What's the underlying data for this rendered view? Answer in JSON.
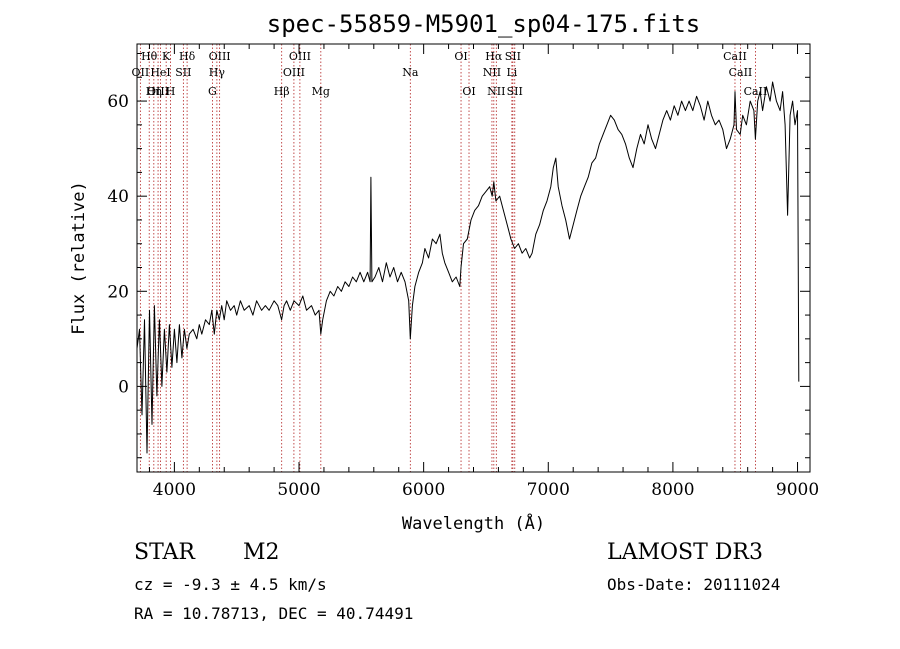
{
  "chart_data": {
    "type": "line",
    "title": "spec-55859-M5901_sp04-175.fits",
    "xlabel": "Wavelength (Å)",
    "ylabel": "Flux (relative)",
    "xlim": [
      3700,
      9100
    ],
    "ylim": [
      -18,
      72
    ],
    "x_ticks": [
      4000,
      5000,
      6000,
      7000,
      8000,
      9000
    ],
    "y_ticks": [
      0,
      20,
      40,
      60
    ],
    "grid": false,
    "line_color": "#000000",
    "marker_color": "#b22222",
    "spectral_lines": [
      {
        "label": "Hθ",
        "x": 3798,
        "row": 0
      },
      {
        "label": "OII",
        "x": 3727,
        "row": 1
      },
      {
        "label": "OIII",
        "x": 3869,
        "row": 2
      },
      {
        "label": "HeI",
        "x": 3889,
        "row": 1
      },
      {
        "label": "Hη",
        "x": 3835,
        "row": 2
      },
      {
        "label": "K",
        "x": 3934,
        "row": 0
      },
      {
        "label": "H",
        "x": 3969,
        "row": 2
      },
      {
        "label": "SII",
        "x": 4072,
        "row": 1
      },
      {
        "label": "Hδ",
        "x": 4102,
        "row": 0
      },
      {
        "label": "OIII",
        "x": 4363,
        "row": 0
      },
      {
        "label": "Hγ",
        "x": 4341,
        "row": 1
      },
      {
        "label": "G",
        "x": 4305,
        "row": 2
      },
      {
        "label": "OIII",
        "x": 5007,
        "row": 0
      },
      {
        "label": "OIII",
        "x": 4959,
        "row": 1
      },
      {
        "label": "Hβ",
        "x": 4861,
        "row": 2
      },
      {
        "label": "Mg",
        "x": 5175,
        "row": 2
      },
      {
        "label": "Na",
        "x": 5893,
        "row": 1
      },
      {
        "label": "OI",
        "x": 6300,
        "row": 0
      },
      {
        "label": "OI",
        "x": 6364,
        "row": 2
      },
      {
        "label": "Hα",
        "x": 6563,
        "row": 0
      },
      {
        "label": "SII",
        "x": 6716,
        "row": 0
      },
      {
        "label": "NII",
        "x": 6548,
        "row": 1
      },
      {
        "label": "Li",
        "x": 6708,
        "row": 1
      },
      {
        "label": "NII",
        "x": 6583,
        "row": 2
      },
      {
        "label": "SII",
        "x": 6731,
        "row": 2
      },
      {
        "label": "CaII",
        "x": 8498,
        "row": 0
      },
      {
        "label": "CaII",
        "x": 8542,
        "row": 1
      },
      {
        "label": "CaII",
        "x": 8662,
        "row": 2
      }
    ],
    "series": [
      {
        "name": "flux",
        "points": [
          [
            3700,
            8
          ],
          [
            3720,
            12
          ],
          [
            3740,
            -6
          ],
          [
            3760,
            14
          ],
          [
            3780,
            -14
          ],
          [
            3800,
            16
          ],
          [
            3820,
            -8
          ],
          [
            3840,
            17
          ],
          [
            3860,
            -2
          ],
          [
            3880,
            14
          ],
          [
            3900,
            0
          ],
          [
            3920,
            12
          ],
          [
            3940,
            3
          ],
          [
            3960,
            13
          ],
          [
            3980,
            4
          ],
          [
            4000,
            12
          ],
          [
            4020,
            5
          ],
          [
            4040,
            13
          ],
          [
            4060,
            6
          ],
          [
            4080,
            12
          ],
          [
            4100,
            8
          ],
          [
            4120,
            11
          ],
          [
            4150,
            12
          ],
          [
            4180,
            10
          ],
          [
            4200,
            13
          ],
          [
            4220,
            11
          ],
          [
            4250,
            14
          ],
          [
            4280,
            13
          ],
          [
            4300,
            16
          ],
          [
            4320,
            11
          ],
          [
            4340,
            16
          ],
          [
            4360,
            14
          ],
          [
            4380,
            17
          ],
          [
            4400,
            14
          ],
          [
            4420,
            18
          ],
          [
            4450,
            16
          ],
          [
            4480,
            17
          ],
          [
            4500,
            15
          ],
          [
            4530,
            18
          ],
          [
            4560,
            16
          ],
          [
            4600,
            17
          ],
          [
            4630,
            15
          ],
          [
            4660,
            18
          ],
          [
            4700,
            16
          ],
          [
            4730,
            17
          ],
          [
            4760,
            16
          ],
          [
            4800,
            18
          ],
          [
            4830,
            17
          ],
          [
            4860,
            14
          ],
          [
            4880,
            17
          ],
          [
            4900,
            18
          ],
          [
            4930,
            16
          ],
          [
            4960,
            18
          ],
          [
            5000,
            17
          ],
          [
            5030,
            19
          ],
          [
            5060,
            16
          ],
          [
            5100,
            17
          ],
          [
            5130,
            15
          ],
          [
            5160,
            16
          ],
          [
            5175,
            11
          ],
          [
            5190,
            14
          ],
          [
            5220,
            18
          ],
          [
            5250,
            20
          ],
          [
            5280,
            19
          ],
          [
            5310,
            21
          ],
          [
            5340,
            20
          ],
          [
            5370,
            22
          ],
          [
            5400,
            21
          ],
          [
            5430,
            23
          ],
          [
            5460,
            22
          ],
          [
            5490,
            24
          ],
          [
            5520,
            22
          ],
          [
            5550,
            24
          ],
          [
            5570,
            22
          ],
          [
            5577,
            44
          ],
          [
            5585,
            22
          ],
          [
            5610,
            23
          ],
          [
            5640,
            25
          ],
          [
            5670,
            22
          ],
          [
            5700,
            26
          ],
          [
            5730,
            23
          ],
          [
            5760,
            25
          ],
          [
            5790,
            22
          ],
          [
            5820,
            24
          ],
          [
            5850,
            22
          ],
          [
            5880,
            18
          ],
          [
            5893,
            10
          ],
          [
            5910,
            17
          ],
          [
            5930,
            21
          ],
          [
            5960,
            24
          ],
          [
            5990,
            26
          ],
          [
            6010,
            29
          ],
          [
            6040,
            27
          ],
          [
            6070,
            31
          ],
          [
            6100,
            30
          ],
          [
            6130,
            32
          ],
          [
            6150,
            28
          ],
          [
            6170,
            26
          ],
          [
            6200,
            24
          ],
          [
            6230,
            22
          ],
          [
            6260,
            23
          ],
          [
            6290,
            21
          ],
          [
            6300,
            25
          ],
          [
            6320,
            30
          ],
          [
            6350,
            31
          ],
          [
            6380,
            35
          ],
          [
            6410,
            37
          ],
          [
            6440,
            38
          ],
          [
            6470,
            40
          ],
          [
            6500,
            41
          ],
          [
            6530,
            42
          ],
          [
            6550,
            40
          ],
          [
            6563,
            43
          ],
          [
            6580,
            39
          ],
          [
            6610,
            40
          ],
          [
            6640,
            37
          ],
          [
            6670,
            34
          ],
          [
            6700,
            31
          ],
          [
            6730,
            29
          ],
          [
            6760,
            30
          ],
          [
            6790,
            28
          ],
          [
            6820,
            29
          ],
          [
            6850,
            27
          ],
          [
            6870,
            28
          ],
          [
            6900,
            32
          ],
          [
            6930,
            34
          ],
          [
            6960,
            37
          ],
          [
            6990,
            39
          ],
          [
            7020,
            42
          ],
          [
            7040,
            46
          ],
          [
            7060,
            48
          ],
          [
            7080,
            42
          ],
          [
            7110,
            38
          ],
          [
            7140,
            35
          ],
          [
            7170,
            31
          ],
          [
            7200,
            34
          ],
          [
            7230,
            37
          ],
          [
            7260,
            40
          ],
          [
            7290,
            42
          ],
          [
            7320,
            44
          ],
          [
            7350,
            47
          ],
          [
            7380,
            48
          ],
          [
            7410,
            51
          ],
          [
            7440,
            53
          ],
          [
            7470,
            55
          ],
          [
            7500,
            57
          ],
          [
            7530,
            56
          ],
          [
            7560,
            54
          ],
          [
            7590,
            53
          ],
          [
            7620,
            51
          ],
          [
            7650,
            48
          ],
          [
            7680,
            46
          ],
          [
            7710,
            50
          ],
          [
            7740,
            53
          ],
          [
            7770,
            51
          ],
          [
            7800,
            55
          ],
          [
            7830,
            52
          ],
          [
            7860,
            50
          ],
          [
            7890,
            53
          ],
          [
            7920,
            56
          ],
          [
            7950,
            58
          ],
          [
            7980,
            56
          ],
          [
            8010,
            59
          ],
          [
            8040,
            57
          ],
          [
            8070,
            60
          ],
          [
            8100,
            58
          ],
          [
            8130,
            60
          ],
          [
            8160,
            58
          ],
          [
            8190,
            61
          ],
          [
            8220,
            59
          ],
          [
            8250,
            56
          ],
          [
            8280,
            60
          ],
          [
            8310,
            57
          ],
          [
            8340,
            55
          ],
          [
            8370,
            56
          ],
          [
            8400,
            54
          ],
          [
            8430,
            50
          ],
          [
            8460,
            52
          ],
          [
            8490,
            55
          ],
          [
            8498,
            62
          ],
          [
            8510,
            54
          ],
          [
            8540,
            53
          ],
          [
            8560,
            57
          ],
          [
            8590,
            55
          ],
          [
            8620,
            60
          ],
          [
            8650,
            58
          ],
          [
            8662,
            52
          ],
          [
            8680,
            60
          ],
          [
            8700,
            62
          ],
          [
            8720,
            58
          ],
          [
            8750,
            63
          ],
          [
            8780,
            60
          ],
          [
            8800,
            64
          ],
          [
            8830,
            60
          ],
          [
            8860,
            58
          ],
          [
            8880,
            62
          ],
          [
            8900,
            55
          ],
          [
            8920,
            36
          ],
          [
            8940,
            57
          ],
          [
            8960,
            60
          ],
          [
            8980,
            55
          ],
          [
            9000,
            58
          ],
          [
            9010,
            1
          ]
        ]
      }
    ]
  },
  "footer": {
    "object_class": "STAR",
    "subclass": "M2",
    "survey": "LAMOST DR3",
    "cz": "cz = -9.3 ± 4.5 km/s",
    "obs_date": "Obs-Date: 20111024",
    "coords": "RA =  10.78713, DEC =  40.74491"
  }
}
